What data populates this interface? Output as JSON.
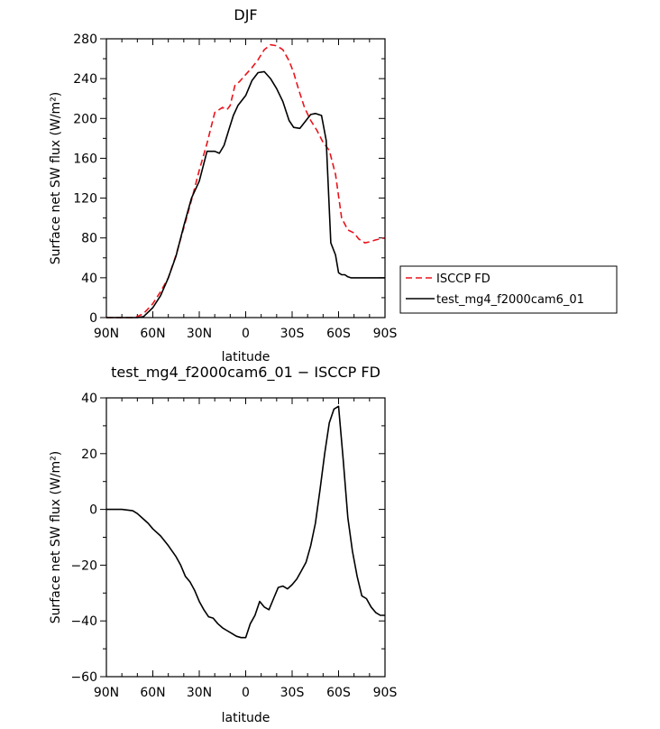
{
  "chart_data": [
    {
      "type": "line",
      "title": "DJF",
      "xlabel": "latitude",
      "ylabel": "Surface net SW flux (W/m²)",
      "xlim": [
        -90,
        90
      ],
      "ylim": [
        0,
        280
      ],
      "xticks": [
        -90,
        -60,
        -30,
        0,
        30,
        60,
        90
      ],
      "xticklabels": [
        "90N",
        "60N",
        "30N",
        "0",
        "30S",
        "60S",
        "90S"
      ],
      "yticks": [
        0,
        40,
        80,
        120,
        160,
        200,
        240,
        280
      ],
      "yticklabels": [
        "0",
        "40",
        "80",
        "120",
        "160",
        "200",
        "240",
        "280"
      ],
      "legend": "right",
      "grid": false,
      "series": [
        {
          "name": "ISCCP FD",
          "color": "#e8141c",
          "dash": true,
          "x": [
            -90,
            -80,
            -72,
            -70,
            -66,
            -60,
            -55,
            -50,
            -45,
            -40,
            -35,
            -30,
            -25,
            -20,
            -15,
            -12,
            -10,
            -7,
            -4,
            0,
            4,
            8,
            12,
            16,
            20,
            24,
            28,
            31,
            34,
            38,
            42,
            46,
            50,
            54,
            58,
            62,
            66,
            70,
            73,
            77,
            80,
            84,
            87,
            90
          ],
          "y": [
            0,
            0,
            0,
            1,
            4,
            14,
            26,
            40,
            63,
            90,
            118,
            148,
            175,
            206,
            211,
            209,
            213,
            233,
            237,
            244,
            251,
            259,
            269,
            274,
            273,
            269,
            258,
            246,
            230,
            211,
            198,
            188,
            176,
            168,
            144,
            100,
            88,
            85,
            79,
            75,
            76,
            78,
            79,
            80
          ]
        },
        {
          "name": "test_mg4_f2000cam6_01",
          "color": "#000000",
          "dash": false,
          "x": [
            -90,
            -80,
            -73,
            -70,
            -66,
            -60,
            -55,
            -50,
            -45,
            -40,
            -35,
            -30,
            -25,
            -20,
            -17,
            -14,
            -11,
            -8,
            -5,
            0,
            4,
            8,
            12,
            16,
            20,
            24,
            28,
            31,
            35,
            38,
            42,
            45,
            49,
            52,
            55,
            58,
            60,
            62,
            64,
            66,
            68,
            70,
            72,
            76,
            80,
            84,
            87,
            90
          ],
          "y": [
            0,
            0,
            0,
            0,
            1,
            10,
            22,
            40,
            62,
            92,
            120,
            137,
            167,
            167,
            165,
            173,
            188,
            203,
            213,
            223,
            238,
            246,
            247,
            240,
            230,
            217,
            198,
            191,
            190,
            196,
            204,
            205,
            203,
            178,
            75,
            63,
            45,
            43,
            43,
            41,
            40,
            40,
            40,
            40,
            40,
            40,
            40,
            40
          ]
        }
      ]
    },
    {
      "type": "line",
      "title": "test_mg4_f2000cam6_01 − ISCCP FD",
      "xlabel": "latitude",
      "ylabel": "Surface net SW flux (W/m²)",
      "xlim": [
        -90,
        90
      ],
      "ylim": [
        -60,
        40
      ],
      "xticks": [
        -90,
        -60,
        -30,
        0,
        30,
        60,
        90
      ],
      "xticklabels": [
        "90N",
        "60N",
        "30N",
        "0",
        "30S",
        "60S",
        "90S"
      ],
      "yticks": [
        -60,
        -40,
        -20,
        0,
        20,
        40
      ],
      "yticklabels": [
        "−60",
        "−40",
        "−20",
        "0",
        "20",
        "40"
      ],
      "grid": false,
      "series": [
        {
          "color": "#000000",
          "dash": false,
          "x": [
            -90,
            -80,
            -73,
            -70,
            -67,
            -63,
            -60,
            -55,
            -50,
            -45,
            -42,
            -39,
            -36,
            -33,
            -30,
            -27,
            -24,
            -21,
            -18,
            -15,
            -12,
            -9,
            -6,
            -3,
            0,
            3,
            6,
            9,
            12,
            15,
            18,
            21,
            24,
            27,
            30,
            33,
            36,
            39,
            42,
            45,
            48,
            51,
            54,
            57,
            60,
            63,
            66,
            69,
            72,
            75,
            78,
            81,
            84,
            87,
            90
          ],
          "y": [
            0,
            0,
            -0.5,
            -1.5,
            -3,
            -5,
            -7,
            -9.5,
            -13,
            -17,
            -20,
            -24,
            -26,
            -29,
            -33,
            -36,
            -38.5,
            -39,
            -41,
            -42.5,
            -43.5,
            -44.5,
            -45.5,
            -46,
            -46,
            -41,
            -38,
            -33,
            -35,
            -36,
            -32,
            -28,
            -27.5,
            -28.5,
            -27,
            -25,
            -22,
            -19,
            -13,
            -5,
            7,
            20,
            31,
            36,
            37,
            18,
            -3,
            -15,
            -24,
            -31,
            -32,
            -35,
            -37,
            -38,
            -38
          ]
        }
      ]
    }
  ]
}
